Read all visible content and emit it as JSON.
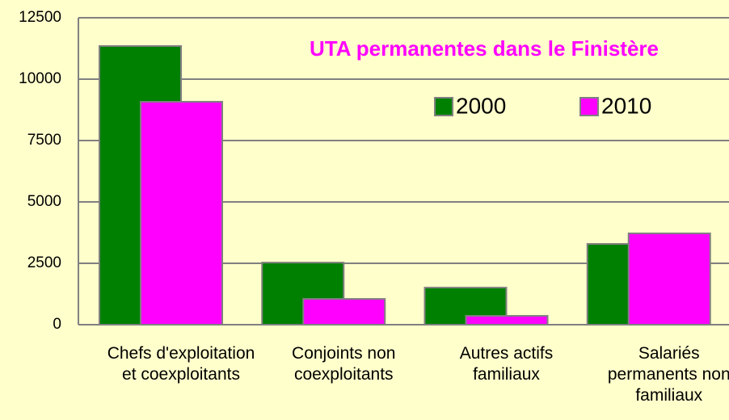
{
  "chart_data": {
    "type": "bar",
    "title": "UTA permanentes dans le Finistère",
    "categories": [
      "Chefs d'exploitation et coexploitants",
      "Conjoints non coexploitants",
      "Autres actifs familiaux",
      "Salariés permanents non familiaux"
    ],
    "series": [
      {
        "name": "2000",
        "color": "#008000",
        "values": [
          11350,
          2530,
          1510,
          3290
        ]
      },
      {
        "name": "2010",
        "color": "#ff00ff",
        "values": [
          9080,
          1050,
          360,
          3720
        ]
      }
    ],
    "ylim": [
      0,
      12500
    ],
    "yticks": [
      0,
      2500,
      5000,
      7500,
      10000,
      12500
    ],
    "grid": true,
    "legend": "top-right"
  }
}
